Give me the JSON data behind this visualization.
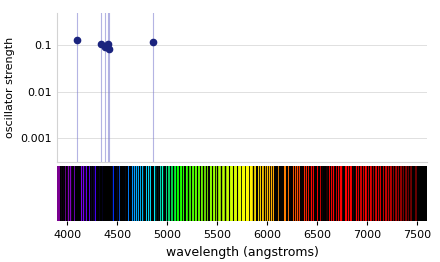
{
  "xlim": [
    3900,
    7600
  ],
  "ylim_log": [
    0.0003,
    0.5
  ],
  "spectral_lines": [
    {
      "wavelength": 4102,
      "strength": 0.13
    },
    {
      "wavelength": 4340,
      "strength": 0.107
    },
    {
      "wavelength": 4861,
      "strength": 0.12
    },
    {
      "wavelength": 4383,
      "strength": 0.092
    },
    {
      "wavelength": 4404,
      "strength": 0.108
    },
    {
      "wavelength": 4415,
      "strength": 0.082
    }
  ],
  "xlabel": "wavelength (angstroms)",
  "ylabel": "oscillator strength",
  "xticks": [
    4000,
    4500,
    5000,
    5500,
    6000,
    6500,
    7000,
    7500
  ],
  "line_color": "#7777cc",
  "dot_color": "#1a237e",
  "ytick_labels": [
    "0.1",
    "0.01",
    "0.001"
  ],
  "ytick_vals": [
    0.1,
    0.01,
    0.001
  ]
}
